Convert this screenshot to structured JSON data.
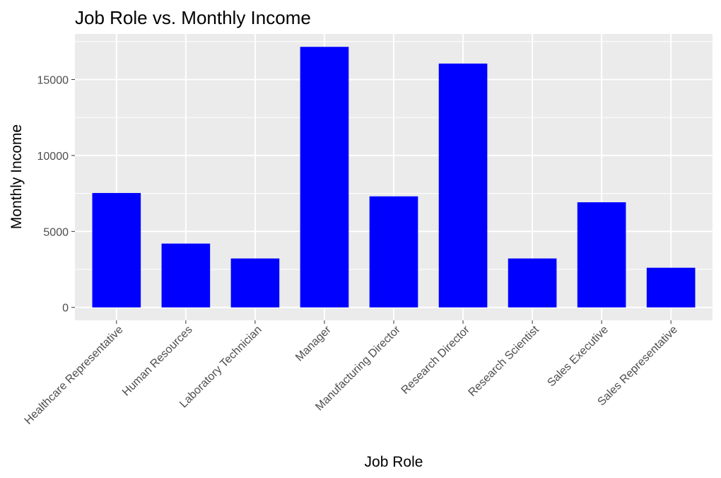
{
  "chart_data": {
    "type": "bar",
    "title": "Job Role vs. Monthly Income",
    "xlabel": "Job Role",
    "ylabel": "Monthly Income",
    "categories": [
      "Healthcare Representative",
      "Human Resources",
      "Laboratory Technician",
      "Manager",
      "Manufacturing Director",
      "Research Director",
      "Research Scientist",
      "Sales Executive",
      "Sales Representative"
    ],
    "values": [
      7530,
      4200,
      3220,
      17150,
      7310,
      16050,
      3220,
      6920,
      2610
    ],
    "yticks": [
      0,
      5000,
      10000,
      15000
    ],
    "ylim": [
      -850,
      18000
    ],
    "bar_color": "#0000ff",
    "panel_background": "#ebebeb",
    "grid": true,
    "legend": "none"
  }
}
